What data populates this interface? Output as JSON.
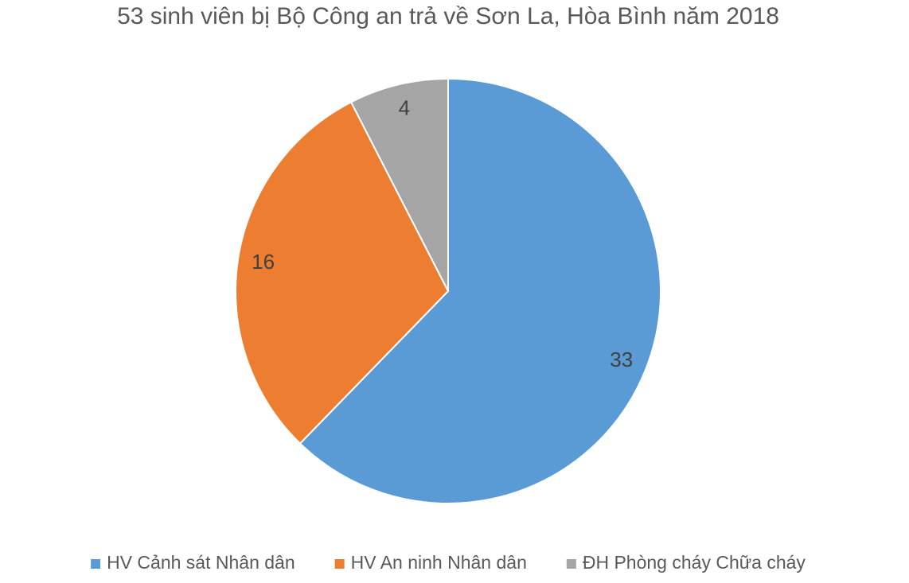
{
  "chart_data": {
    "type": "pie",
    "title": "53 sinh viên bị Bộ Công an trả về Sơn La, Hòa Bình năm 2018",
    "categories": [
      "HV Cảnh sát Nhân dân",
      "HV An ninh Nhân dân",
      "ĐH Phòng cháy Chữa cháy"
    ],
    "values": [
      33,
      16,
      4
    ],
    "colors": [
      "#5b9bd5",
      "#ed7d31",
      "#a5a5a5"
    ],
    "legend": "bottom"
  }
}
